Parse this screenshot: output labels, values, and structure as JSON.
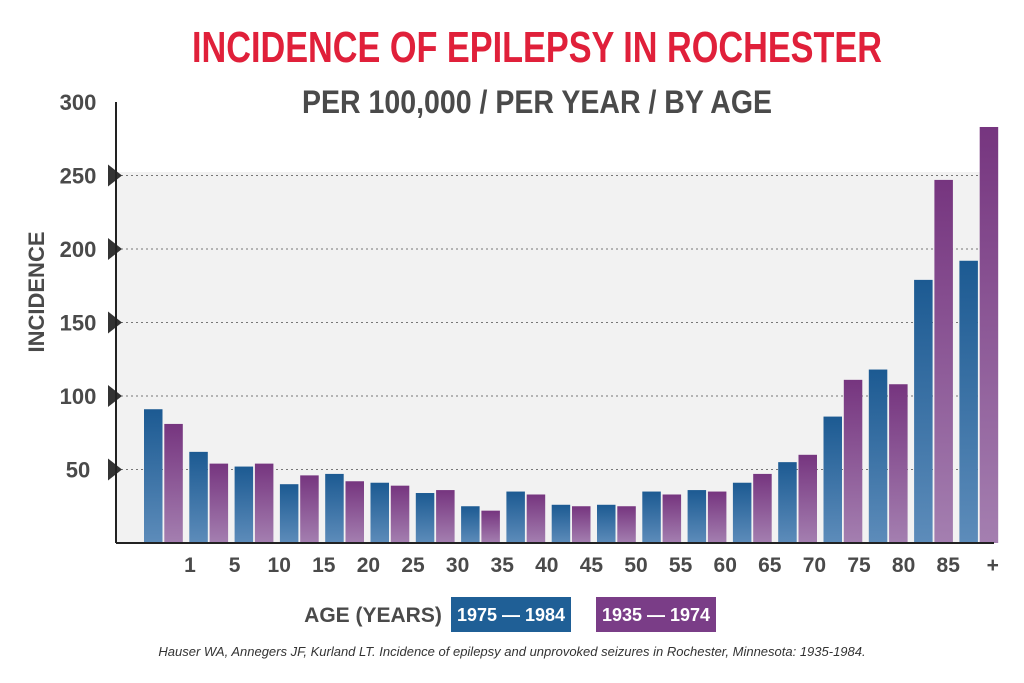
{
  "chart_data": {
    "type": "bar",
    "title": "INCIDENCE OF EPILEPSY IN ROCHESTER",
    "subtitle": "PER 100,000 / PER YEAR / BY AGE",
    "ylabel": "INCIDENCE",
    "xlabel": "AGE (YEARS)",
    "ylim": [
      0,
      300
    ],
    "yticks": [
      50,
      100,
      150,
      200,
      250,
      300
    ],
    "grid": true,
    "legend_position": "bottom",
    "x_tick_labels": [
      "1",
      "5",
      "10",
      "15",
      "20",
      "25",
      "30",
      "35",
      "40",
      "45",
      "50",
      "55",
      "60",
      "65",
      "70",
      "75",
      "80",
      "85",
      "+"
    ],
    "series": [
      {
        "name": "1975 — 1984",
        "color": "#1f5f96",
        "values": [
          91,
          62,
          52,
          40,
          47,
          41,
          34,
          25,
          35,
          26,
          26,
          35,
          36,
          41,
          55,
          86,
          118,
          179,
          192
        ]
      },
      {
        "name": "1935 — 1974",
        "color": "#7a3d87",
        "values": [
          81,
          54,
          54,
          46,
          42,
          39,
          36,
          22,
          33,
          25,
          25,
          33,
          35,
          47,
          60,
          111,
          108,
          247,
          283
        ]
      }
    ],
    "colors": {
      "title": "#e0203a",
      "text": "#4a4a4a",
      "plot_bg": "#f2f2f2"
    }
  },
  "footnote": "Hauser WA, Annegers JF, Kurland LT. Incidence of epilepsy and unprovoked seizures in Rochester, Minnesota: 1935-1984."
}
